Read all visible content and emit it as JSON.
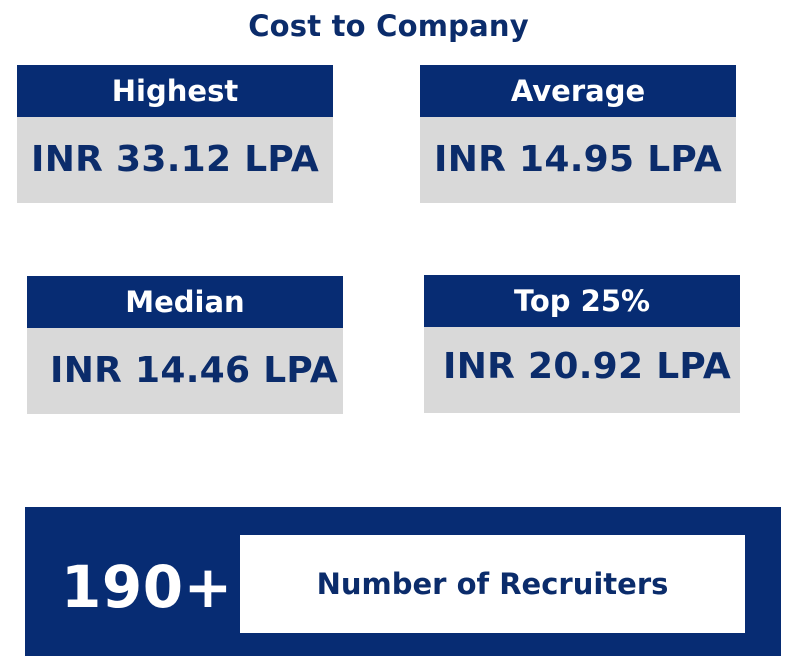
{
  "title": "Cost to Company",
  "cards": {
    "highest": {
      "label": "Highest",
      "value": "INR 33.12 LPA"
    },
    "average": {
      "label": "Average",
      "value": "INR 14.95 LPA"
    },
    "median": {
      "label": "Median",
      "value": "INR 14.46 LPA"
    },
    "top25": {
      "label": "Top 25%",
      "value": "INR 20.92 LPA"
    }
  },
  "recruiters": {
    "count": "190+",
    "label": "Number of Recruiters"
  },
  "colors": {
    "navy": "#072c73",
    "text_navy": "#0b2c6b",
    "card_gray": "#d9d9d9",
    "white": "#ffffff"
  }
}
